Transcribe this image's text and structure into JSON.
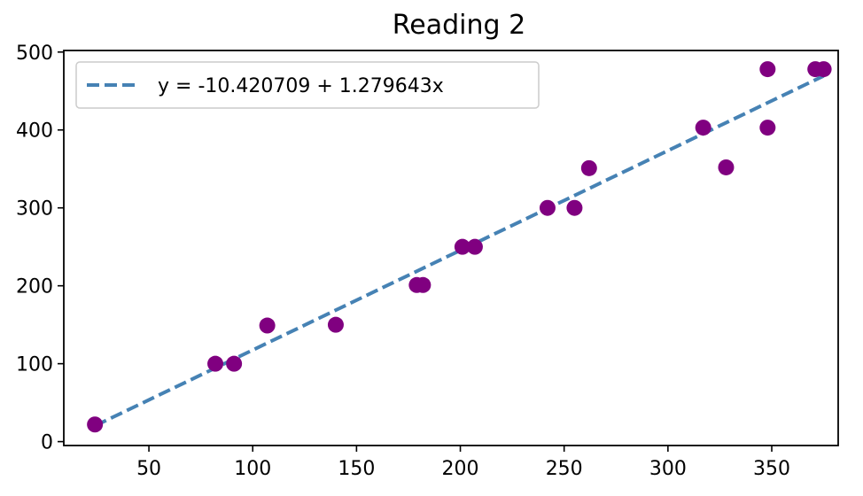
{
  "chart_data": {
    "type": "scatter",
    "title": "Reading 2",
    "xlabel": "",
    "ylabel": "",
    "xlim": [
      9,
      382
    ],
    "ylim": [
      -5,
      502
    ],
    "xticks": [
      50,
      100,
      150,
      200,
      250,
      300,
      350
    ],
    "yticks": [
      0,
      100,
      200,
      300,
      400,
      500
    ],
    "grid": false,
    "legend_position": "upper-left",
    "marker_color": "#800080",
    "line_color": "#4682b4",
    "points": [
      {
        "x": 24,
        "y": 22
      },
      {
        "x": 82,
        "y": 100
      },
      {
        "x": 91,
        "y": 100
      },
      {
        "x": 107,
        "y": 149
      },
      {
        "x": 140,
        "y": 150
      },
      {
        "x": 179,
        "y": 201
      },
      {
        "x": 182,
        "y": 201
      },
      {
        "x": 201,
        "y": 250
      },
      {
        "x": 207,
        "y": 250
      },
      {
        "x": 242,
        "y": 300
      },
      {
        "x": 255,
        "y": 300
      },
      {
        "x": 262,
        "y": 351
      },
      {
        "x": 317,
        "y": 403
      },
      {
        "x": 328,
        "y": 352
      },
      {
        "x": 348,
        "y": 478
      },
      {
        "x": 348,
        "y": 403
      },
      {
        "x": 371,
        "y": 478
      },
      {
        "x": 375,
        "y": 478
      }
    ],
    "fit_line": {
      "label": "y = -10.420709 + 1.279643x",
      "intercept": -10.420709,
      "slope": 1.279643,
      "x_start": 24,
      "x_end": 375
    }
  }
}
